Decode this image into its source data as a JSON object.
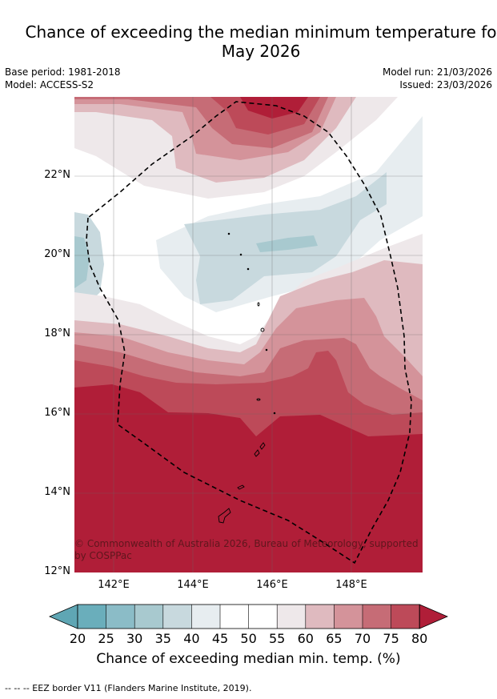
{
  "title": {
    "line1": "Chance of exceeding the median minimum temperature fo",
    "line2": "May 2026"
  },
  "meta": {
    "base_period": "Base period: 1981-2018",
    "model": "Model: ACCESS-S2",
    "model_run": "Model run: 21/03/2026",
    "issued": "Issued: 23/03/2026"
  },
  "map": {
    "lat_ticks": [
      "22°N",
      "20°N",
      "18°N",
      "16°N",
      "14°N",
      "12°N"
    ],
    "lon_ticks": [
      "142°E",
      "144°E",
      "146°E",
      "148°E"
    ],
    "copyright": "© Commonwealth of Australia 2026, Bureau of Meteorology, supported by COSPPac",
    "colors": {
      "c20_25": "#6aaebb",
      "c25_30": "#8bbcc7",
      "c30_35": "#a8c9cf",
      "c35_40": "#c8d9de",
      "c40_45": "#e7edf0",
      "c45_50": "#ffffff",
      "c50_55": "#ffffff",
      "c55_60": "#eee8ea",
      "c60_65": "#dfbabf",
      "c65_70": "#d4939a",
      "c70_75": "#c66c76",
      "c75_80": "#bd4a59",
      "c80": "#b01e38"
    }
  },
  "colorbar": {
    "labels": [
      "20",
      "25",
      "30",
      "35",
      "40",
      "45",
      "50",
      "55",
      "60",
      "65",
      "70",
      "75",
      "80"
    ],
    "title": "Chance of exceeding median min. temp. (%)"
  },
  "footnote": "--  --  -- EEZ border V11 (Flanders Marine Institute, 2019)."
}
